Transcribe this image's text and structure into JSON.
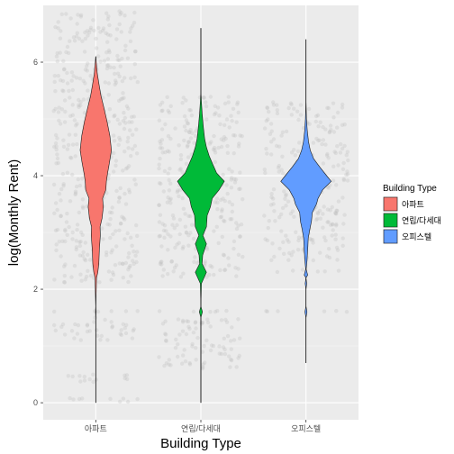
{
  "chart_data": {
    "type": "violin",
    "xlabel": "Building Type",
    "ylabel": "log(Monthly Rent)",
    "ylim": [
      -0.3,
      7.0
    ],
    "yticks": [
      0,
      2,
      4,
      6
    ],
    "grid": true,
    "legend_position": "right",
    "legend": {
      "title": "Building Type",
      "entries": [
        "아파트",
        "연립/다세대",
        "오피스텔"
      ]
    },
    "categories": [
      "아파트",
      "연립/다세대",
      "오피스텔"
    ],
    "series": [
      {
        "name": "아파트",
        "color": "#F8766D",
        "min": 0.0,
        "max": 6.1,
        "density": [
          [
            0.0,
            0.0
          ],
          [
            1.5,
            0.0
          ],
          [
            1.6,
            0.01
          ],
          [
            1.7,
            0.0
          ],
          [
            2.2,
            0.03
          ],
          [
            2.3,
            0.08
          ],
          [
            2.45,
            0.12
          ],
          [
            2.7,
            0.14
          ],
          [
            2.95,
            0.18
          ],
          [
            3.1,
            0.17
          ],
          [
            3.25,
            0.25
          ],
          [
            3.45,
            0.3
          ],
          [
            3.6,
            0.27
          ],
          [
            3.75,
            0.4
          ],
          [
            3.9,
            0.42
          ],
          [
            4.05,
            0.47
          ],
          [
            4.25,
            0.55
          ],
          [
            4.45,
            0.62
          ],
          [
            4.7,
            0.56
          ],
          [
            4.95,
            0.45
          ],
          [
            5.2,
            0.32
          ],
          [
            5.4,
            0.21
          ],
          [
            5.6,
            0.13
          ],
          [
            5.8,
            0.06
          ],
          [
            6.0,
            0.02
          ],
          [
            6.1,
            0.0
          ]
        ]
      },
      {
        "name": "연립/다세대",
        "color": "#00BA38",
        "min": 0.0,
        "max": 6.6,
        "density": [
          [
            0.0,
            0.0
          ],
          [
            1.5,
            0.0
          ],
          [
            1.6,
            0.06
          ],
          [
            1.7,
            0.0
          ],
          [
            2.1,
            0.02
          ],
          [
            2.3,
            0.22
          ],
          [
            2.45,
            0.05
          ],
          [
            2.6,
            0.07
          ],
          [
            2.8,
            0.22
          ],
          [
            2.95,
            0.08
          ],
          [
            3.1,
            0.22
          ],
          [
            3.3,
            0.25
          ],
          [
            3.45,
            0.38
          ],
          [
            3.6,
            0.45
          ],
          [
            3.75,
            0.72
          ],
          [
            3.9,
            0.93
          ],
          [
            4.05,
            0.62
          ],
          [
            4.2,
            0.47
          ],
          [
            4.35,
            0.33
          ],
          [
            4.5,
            0.22
          ],
          [
            4.65,
            0.15
          ],
          [
            4.85,
            0.1
          ],
          [
            5.1,
            0.05
          ],
          [
            5.3,
            0.02
          ],
          [
            5.5,
            0.0
          ],
          [
            6.6,
            0.0
          ]
        ]
      },
      {
        "name": "오피스텔",
        "color": "#619CFF",
        "min": 0.7,
        "max": 6.4,
        "density": [
          [
            0.7,
            0.0
          ],
          [
            1.5,
            0.0
          ],
          [
            1.6,
            0.04
          ],
          [
            1.7,
            0.0
          ],
          [
            2.0,
            0.0
          ],
          [
            2.1,
            0.03
          ],
          [
            2.2,
            0.0
          ],
          [
            2.25,
            0.07
          ],
          [
            2.35,
            0.01
          ],
          [
            2.5,
            0.04
          ],
          [
            2.7,
            0.07
          ],
          [
            2.9,
            0.09
          ],
          [
            3.05,
            0.15
          ],
          [
            3.2,
            0.22
          ],
          [
            3.35,
            0.25
          ],
          [
            3.5,
            0.42
          ],
          [
            3.6,
            0.48
          ],
          [
            3.75,
            0.66
          ],
          [
            3.9,
            1.0
          ],
          [
            4.0,
            0.82
          ],
          [
            4.15,
            0.55
          ],
          [
            4.3,
            0.3
          ],
          [
            4.45,
            0.17
          ],
          [
            4.6,
            0.1
          ],
          [
            4.8,
            0.05
          ],
          [
            5.0,
            0.02
          ],
          [
            5.3,
            0.0
          ],
          [
            6.4,
            0.0
          ]
        ]
      }
    ],
    "jitter": {
      "color": "#BEBEBE",
      "opacity": 0.3,
      "bands": [
        [
          [
            0.0,
            0.1
          ],
          [
            0.35,
            0.5
          ],
          [
            1.1,
            1.5
          ],
          [
            1.6,
            1.62
          ],
          [
            2.1,
            2.3
          ],
          [
            2.3,
            2.8
          ],
          [
            2.8,
            6.0
          ],
          [
            6.0,
            6.9
          ]
        ],
        [
          [
            0.6,
            1.5
          ],
          [
            1.6,
            1.62
          ],
          [
            2.2,
            2.3
          ],
          [
            2.3,
            3.3
          ],
          [
            3.3,
            5.0
          ],
          [
            5.0,
            5.4
          ]
        ],
        [
          [
            1.6,
            1.62
          ],
          [
            2.3,
            2.35
          ],
          [
            2.5,
            3.2
          ],
          [
            3.2,
            4.8
          ],
          [
            4.8,
            5.3
          ]
        ]
      ]
    }
  }
}
